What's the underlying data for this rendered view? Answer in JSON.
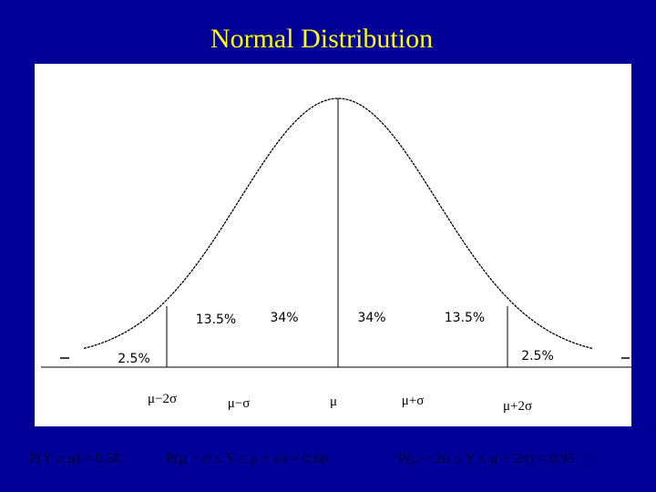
{
  "title": "Normal Distribution",
  "regions": [
    "2.5%",
    "13.5%",
    "34%",
    "34%",
    "13.5%",
    "2.5%"
  ],
  "x_labels": [
    "μ−2σ",
    "μ−σ",
    "μ",
    "μ+σ",
    "μ+2σ"
  ],
  "formulas": [
    "P(Y ≥ μ) = 0.50",
    "P(μ − σ ≤ Y ≤ μ + σ) = 0.68",
    "P(μ − 2σ ≤ Y ≤ μ + 2σ) = 0.95"
  ]
}
